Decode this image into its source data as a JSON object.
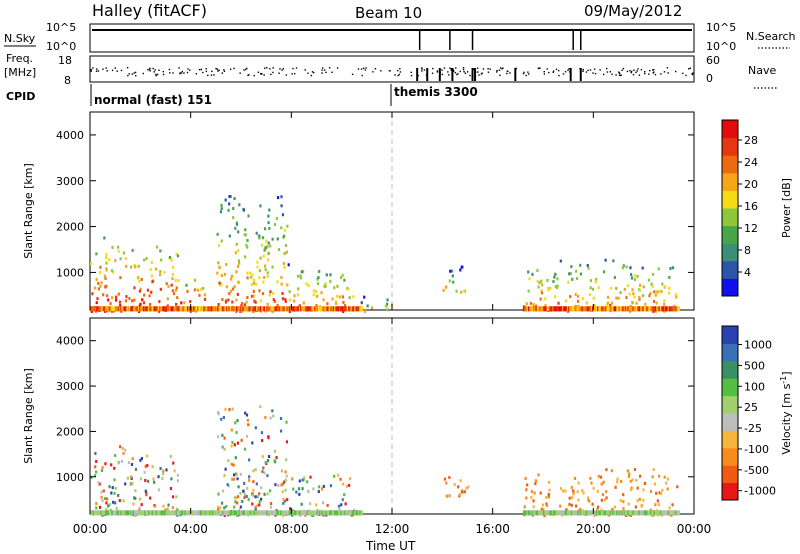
{
  "header": {
    "station": "Halley (fitACF)",
    "beam": "Beam 10",
    "date": "09/May/2012"
  },
  "status_panels": {
    "nsky_label": "N.Sky",
    "nsky_ticks": [
      "10^5",
      "10^0"
    ],
    "nsearch_label": "N.Search",
    "nsearch_ticks": [
      "10^5",
      "10^0"
    ],
    "freq_label_1": "Freq.",
    "freq_label_2": "[MHz]",
    "freq_ticks": [
      "18",
      "8"
    ],
    "nave_label": "Nave",
    "nave_ticks": [
      "60",
      "0"
    ],
    "cpid_label": "CPID",
    "cpid_segments": [
      {
        "name": "normal (fast) 151",
        "start_hour": 0
      },
      {
        "name": "themis 3300",
        "start_hour": 12
      }
    ]
  },
  "x_axis": {
    "label": "Time UT",
    "ticks": [
      "00:00",
      "04:00",
      "08:00",
      "12:00",
      "16:00",
      "20:00",
      "00:00"
    ]
  },
  "chart_data": [
    {
      "type": "heatmap",
      "title": "",
      "quantity": "Power [dB]",
      "ylabel": "Slant Range [km]",
      "xlabel": "Time UT",
      "xlim_hours": [
        0,
        24
      ],
      "ylim": [
        180,
        4500
      ],
      "y_ticks": [
        "1000",
        "2000",
        "3000",
        "4000"
      ],
      "colorbar": {
        "label": "Power [dB]",
        "ticks": [
          "4",
          "8",
          "12",
          "16",
          "20",
          "24",
          "28"
        ],
        "colors": [
          "#1010ee",
          "#2c54a8",
          "#3b8e78",
          "#49a648",
          "#8ec83a",
          "#f5dc14",
          "#f5a515",
          "#ee6a10",
          "#e53810",
          "#e30c0c"
        ]
      },
      "regions": [
        {
          "t": [
            0.0,
            1.5
          ],
          "r": [
            180,
            1800
          ],
          "level": "strong"
        },
        {
          "t": [
            1.5,
            3.6
          ],
          "r": [
            180,
            1600
          ],
          "level": "strong"
        },
        {
          "t": [
            3.6,
            4.6
          ],
          "r": [
            180,
            900
          ],
          "level": "strong"
        },
        {
          "t": [
            5.0,
            7.8
          ],
          "r": [
            180,
            2700
          ],
          "level": "medium"
        },
        {
          "t": [
            7.8,
            10.5
          ],
          "r": [
            180,
            1200
          ],
          "level": "medium"
        },
        {
          "t": [
            10.5,
            12.0
          ],
          "r": [
            180,
            500
          ],
          "level": "weak"
        },
        {
          "t": [
            14.0,
            15.0
          ],
          "r": [
            600,
            1200
          ],
          "level": "weak"
        },
        {
          "t": [
            17.2,
            23.3
          ],
          "r": [
            180,
            1300
          ],
          "level": "medium"
        }
      ]
    },
    {
      "type": "heatmap",
      "title": "",
      "quantity": "Velocity [m s-1]",
      "ylabel": "Slant Range [km]",
      "xlabel": "Time UT",
      "xlim_hours": [
        0,
        24
      ],
      "ylim": [
        180,
        4500
      ],
      "y_ticks": [
        "1000",
        "2000",
        "3000",
        "4000"
      ],
      "colorbar": {
        "label": "Velocity [m s",
        "label_sup": "-1",
        "label_end": "]",
        "ticks": [
          "1000",
          "500",
          "100",
          "25",
          "-25",
          "-100",
          "-500",
          "-1000"
        ],
        "colors": [
          "#2a42b0",
          "#3a70b8",
          "#3a9066",
          "#55c040",
          "#9ed06c",
          "#bdbdbd",
          "#f5b43c",
          "#f58c1c",
          "#f05a12",
          "#e51818"
        ]
      },
      "regions": [
        {
          "t": [
            0.0,
            1.5
          ],
          "r": [
            180,
            1700
          ],
          "level": "mixed"
        },
        {
          "t": [
            1.5,
            3.6
          ],
          "r": [
            180,
            1500
          ],
          "level": "mixed"
        },
        {
          "t": [
            5.0,
            7.8
          ],
          "r": [
            180,
            2600
          ],
          "level": "mixed"
        },
        {
          "t": [
            7.8,
            10.5
          ],
          "r": [
            180,
            1100
          ],
          "level": "mixed"
        },
        {
          "t": [
            14.0,
            15.0
          ],
          "r": [
            600,
            1200
          ],
          "level": "neg"
        },
        {
          "t": [
            17.2,
            23.3
          ],
          "r": [
            180,
            1200
          ],
          "level": "neg"
        }
      ]
    }
  ]
}
